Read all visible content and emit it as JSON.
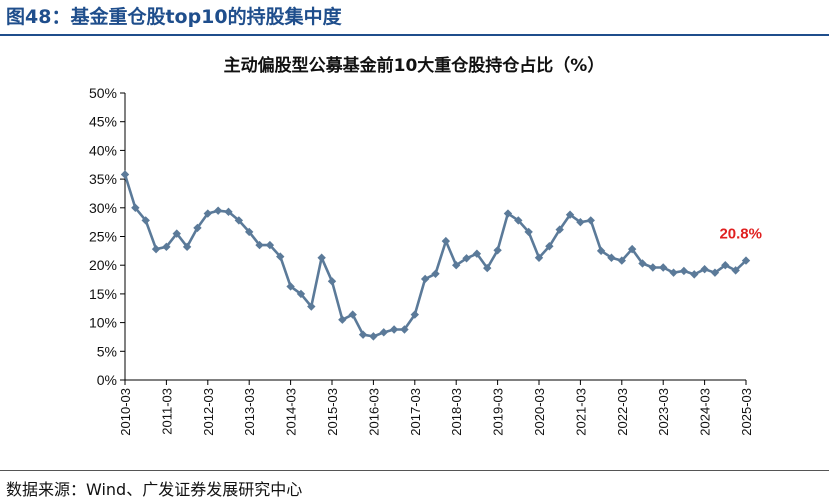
{
  "figure": {
    "title": "图48：基金重仓股top10的持股集中度",
    "source": "数据来源：Wind、广发证券发展研究中心"
  },
  "colors": {
    "title": "#1f4e8c",
    "line": "#5b7a99",
    "marker": "#5b7a99",
    "highlight_label": "#e02020"
  },
  "chart_data": {
    "type": "line",
    "title": "主动偏股型公募基金前10大重仓股持仓占比（%）",
    "xlabel": "",
    "ylabel": "",
    "ylim": [
      0,
      50
    ],
    "y_ticks": [
      "0%",
      "5%",
      "10%",
      "15%",
      "20%",
      "25%",
      "30%",
      "35%",
      "40%",
      "45%",
      "50%"
    ],
    "x_tick_labels": [
      "2010-03",
      "2011-03",
      "2012-03",
      "2013-03",
      "2014-03",
      "2015-03",
      "2016-03",
      "2017-03",
      "2018-03",
      "2019-03",
      "2020-03",
      "2021-03",
      "2022-03",
      "2023-03",
      "2024-03",
      "2025-03"
    ],
    "grid": false,
    "legend": "none",
    "x": [
      "2010-03",
      "2010-06",
      "2010-09",
      "2010-12",
      "2011-03",
      "2011-06",
      "2011-09",
      "2011-12",
      "2012-03",
      "2012-06",
      "2012-09",
      "2012-12",
      "2013-03",
      "2013-06",
      "2013-09",
      "2013-12",
      "2014-03",
      "2014-06",
      "2014-09",
      "2014-12",
      "2015-03",
      "2015-06",
      "2015-09",
      "2015-12",
      "2016-03",
      "2016-06",
      "2016-09",
      "2016-12",
      "2017-03",
      "2017-06",
      "2017-09",
      "2017-12",
      "2018-03",
      "2018-06",
      "2018-09",
      "2018-12",
      "2019-03",
      "2019-06",
      "2019-09",
      "2019-12",
      "2020-03",
      "2020-06",
      "2020-09",
      "2020-12",
      "2021-03",
      "2021-06",
      "2021-09",
      "2021-12",
      "2022-03",
      "2022-06",
      "2022-09",
      "2022-12",
      "2023-03",
      "2023-06",
      "2023-09",
      "2023-12",
      "2024-03",
      "2024-06",
      "2024-09",
      "2024-12",
      "2025-03"
    ],
    "values": [
      35.8,
      30.0,
      27.8,
      22.8,
      23.2,
      25.5,
      23.2,
      26.5,
      29.0,
      29.5,
      29.3,
      27.8,
      25.8,
      23.5,
      23.5,
      21.5,
      16.3,
      15.0,
      12.8,
      21.3,
      17.2,
      10.5,
      11.4,
      7.9,
      7.6,
      8.3,
      8.8,
      8.8,
      11.4,
      17.6,
      18.5,
      24.2,
      20.0,
      21.2,
      22.0,
      19.5,
      22.6,
      29.0,
      27.8,
      25.8,
      21.3,
      23.3,
      26.2,
      28.8,
      27.5,
      27.8,
      22.5,
      21.3,
      20.8,
      22.8,
      20.3,
      19.6,
      19.6,
      18.7,
      19.0,
      18.4,
      19.3,
      18.7,
      20.0,
      19.1,
      20.8
    ],
    "annotation": {
      "text": "20.8%"
    }
  }
}
